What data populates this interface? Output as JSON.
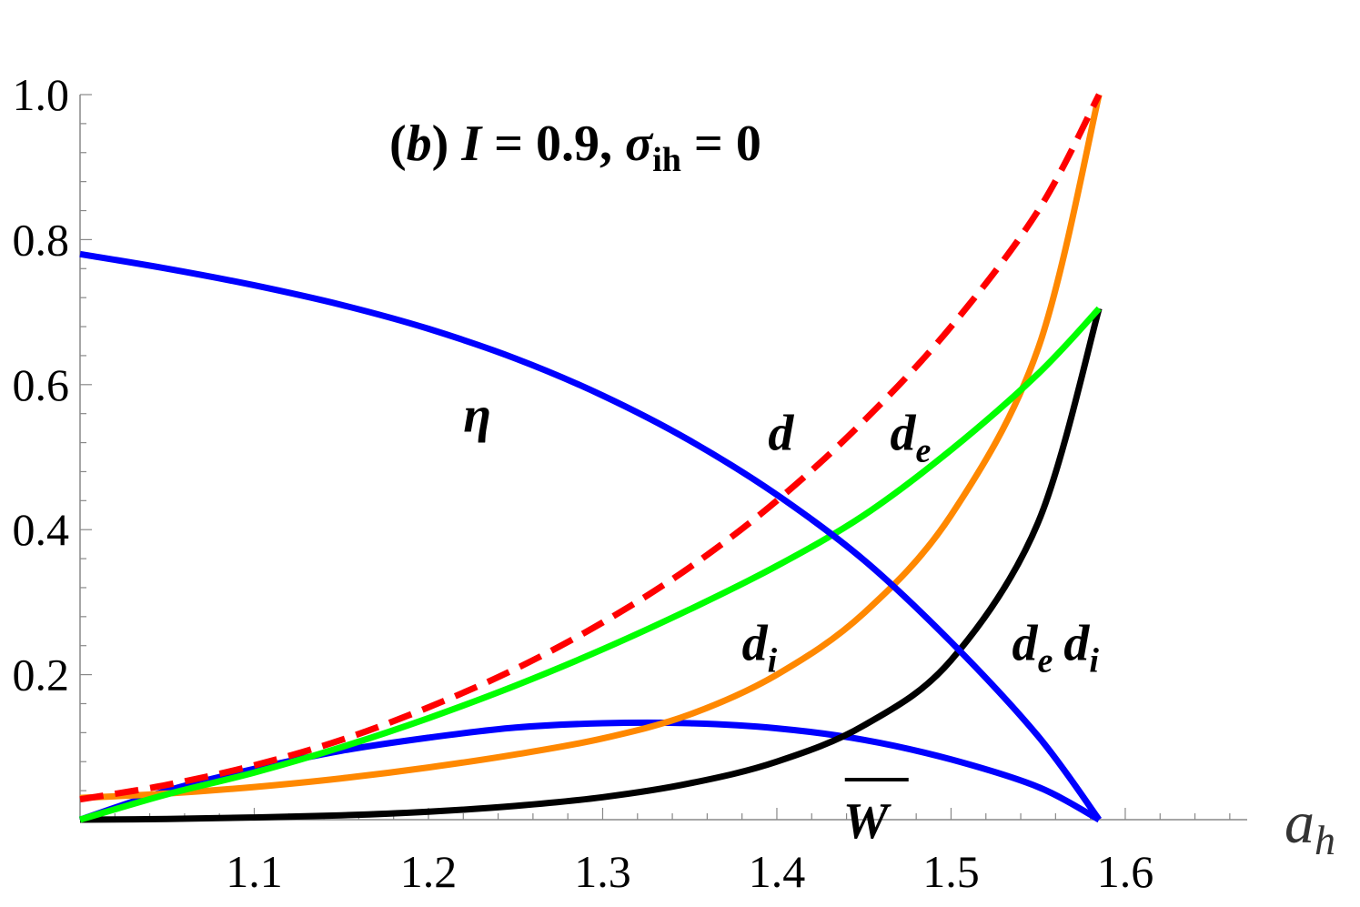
{
  "chart_data": {
    "type": "line",
    "title": "(b) I = 0.9, σih = 0",
    "title_parts": {
      "panel": "b",
      "I_symbol": "I",
      "I_value": "0.9",
      "sigma_symbol": "σ",
      "sigma_sub": "ih",
      "sigma_value": "0"
    },
    "xlabel": "a",
    "xlabel_sub": "h",
    "ylabel": "",
    "xlim": [
      1.0,
      1.67
    ],
    "ylim": [
      0.0,
      1.0
    ],
    "x_ticks": [
      "1.1",
      "1.2",
      "1.3",
      "1.4",
      "1.5",
      "1.6"
    ],
    "y_ticks": [
      "0.2",
      "0.4",
      "0.6",
      "0.8",
      "1.0"
    ],
    "grid": false,
    "legend": "none",
    "series": [
      {
        "name": "d",
        "color": "#ff0000",
        "style": "dashed",
        "x": [
          1.0,
          1.05,
          1.1,
          1.15,
          1.2,
          1.25,
          1.3,
          1.35,
          1.4,
          1.45,
          1.5,
          1.55,
          1.585
        ],
        "y": [
          0.028,
          0.048,
          0.075,
          0.11,
          0.155,
          0.208,
          0.272,
          0.348,
          0.44,
          0.55,
          0.68,
          0.84,
          1.0
        ]
      },
      {
        "name": "η",
        "color": "#0000ff",
        "style": "solid",
        "x": [
          1.0,
          1.05,
          1.1,
          1.15,
          1.2,
          1.25,
          1.3,
          1.35,
          1.4,
          1.45,
          1.5,
          1.55,
          1.585
        ],
        "y": [
          0.78,
          0.76,
          0.737,
          0.71,
          0.677,
          0.636,
          0.585,
          0.523,
          0.448,
          0.358,
          0.245,
          0.115,
          0.0
        ]
      },
      {
        "name": "d_e",
        "color": "#00ff00",
        "style": "solid",
        "x": [
          1.0,
          1.05,
          1.1,
          1.15,
          1.2,
          1.25,
          1.3,
          1.35,
          1.4,
          1.45,
          1.5,
          1.55,
          1.585
        ],
        "y": [
          0.0,
          0.035,
          0.065,
          0.1,
          0.14,
          0.185,
          0.235,
          0.29,
          0.35,
          0.42,
          0.51,
          0.615,
          0.705
        ]
      },
      {
        "name": "d_i",
        "color": "#ff8800",
        "style": "solid",
        "x": [
          1.0,
          1.05,
          1.1,
          1.15,
          1.2,
          1.25,
          1.3,
          1.35,
          1.4,
          1.45,
          1.5,
          1.55,
          1.585
        ],
        "y": [
          0.03,
          0.036,
          0.045,
          0.057,
          0.072,
          0.09,
          0.112,
          0.145,
          0.2,
          0.285,
          0.42,
          0.65,
          1.0
        ]
      },
      {
        "name": "d_e d_i",
        "color": "#000000",
        "style": "solid",
        "x": [
          1.0,
          1.05,
          1.1,
          1.15,
          1.2,
          1.25,
          1.3,
          1.35,
          1.4,
          1.45,
          1.5,
          1.55,
          1.585
        ],
        "y": [
          0.0,
          0.001,
          0.003,
          0.006,
          0.011,
          0.019,
          0.031,
          0.05,
          0.08,
          0.13,
          0.22,
          0.41,
          0.705
        ]
      },
      {
        "name": "W̄",
        "color": "#0000ff",
        "style": "solid",
        "x": [
          1.0,
          1.05,
          1.1,
          1.15,
          1.2,
          1.25,
          1.3,
          1.35,
          1.4,
          1.45,
          1.5,
          1.55,
          1.585
        ],
        "y": [
          0.0,
          0.04,
          0.07,
          0.095,
          0.113,
          0.127,
          0.133,
          0.133,
          0.126,
          0.11,
          0.083,
          0.045,
          0.0
        ]
      }
    ],
    "annotations": [
      {
        "series": "η",
        "text": "η",
        "x": 1.22,
        "y": 0.56
      },
      {
        "series": "d",
        "text": "d",
        "x": 1.395,
        "y": 0.535
      },
      {
        "series": "d_e",
        "text": "d",
        "sub": "e",
        "x": 1.465,
        "y": 0.535
      },
      {
        "series": "d_i",
        "text": "d",
        "sub": "i",
        "x": 1.38,
        "y": 0.245
      },
      {
        "series": "d_e d_i",
        "text": "d",
        "sub": "e",
        "text2": "d",
        "sub2": "i",
        "x": 1.535,
        "y": 0.245
      },
      {
        "series": "W̄",
        "text": "W",
        "x": 1.438,
        "y": 0.0
      }
    ]
  }
}
